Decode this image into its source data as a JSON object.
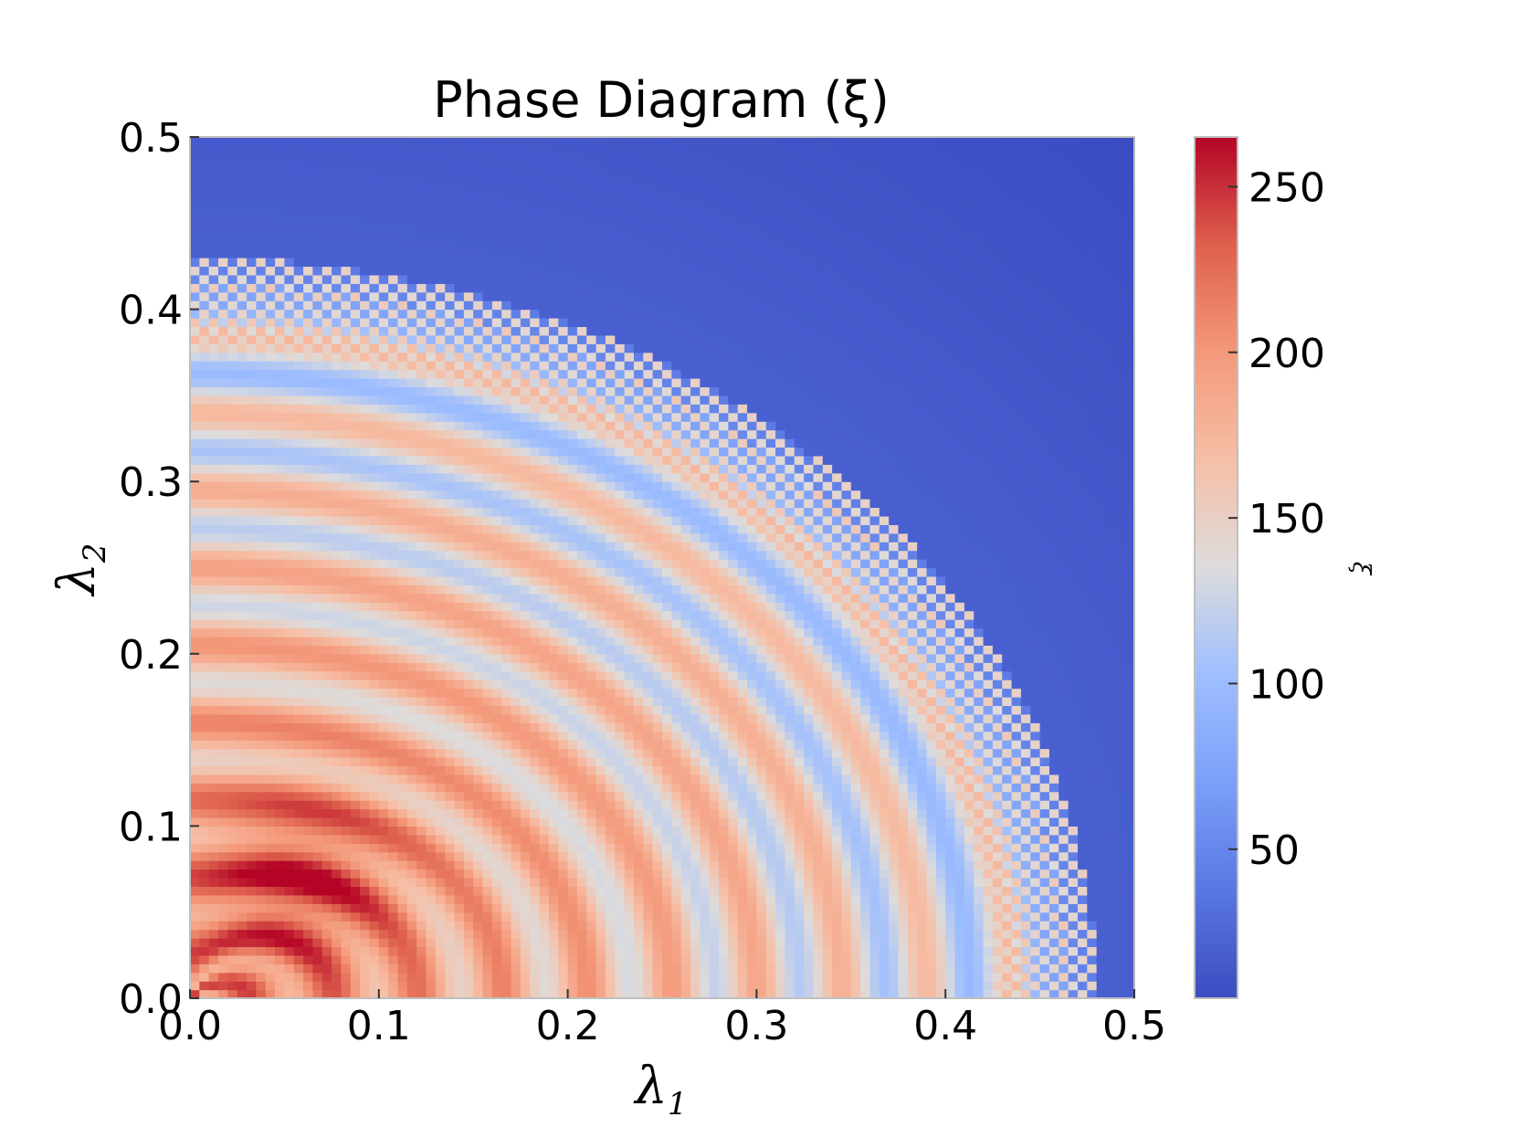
{
  "chart_data": {
    "type": "heatmap",
    "title": "Phase Diagram (ξ)",
    "xlabel": "λ",
    "xlabel_sub": "1",
    "ylabel": "λ",
    "ylabel_sub": "2",
    "xlim": [
      0.0,
      0.5
    ],
    "ylim": [
      0.0,
      0.5
    ],
    "xticks": [
      0.0,
      0.1,
      0.2,
      0.3,
      0.4,
      0.5
    ],
    "yticks": [
      0.0,
      0.1,
      0.2,
      0.3,
      0.4,
      0.5
    ],
    "xtick_labels": [
      "0.0",
      "0.1",
      "0.2",
      "0.3",
      "0.4",
      "0.5"
    ],
    "ytick_labels": [
      "0.0",
      "0.1",
      "0.2",
      "0.3",
      "0.4",
      "0.5"
    ],
    "grid_resolution": [
      100,
      100
    ],
    "colormap": "coolwarm",
    "color_range": [
      5,
      265
    ],
    "colorbar": {
      "label": "ξ",
      "ticks": [
        50,
        100,
        150,
        200,
        250
      ],
      "tick_labels": [
        "50",
        "100",
        "150",
        "200",
        "250"
      ]
    },
    "field_description": {
      "phase_boundary_radius": [
        0.43,
        0.48
      ],
      "outside_boundary_value": 20,
      "peak_value": 265,
      "peak_location": [
        0.06,
        0.07
      ]
    },
    "grid": false
  }
}
